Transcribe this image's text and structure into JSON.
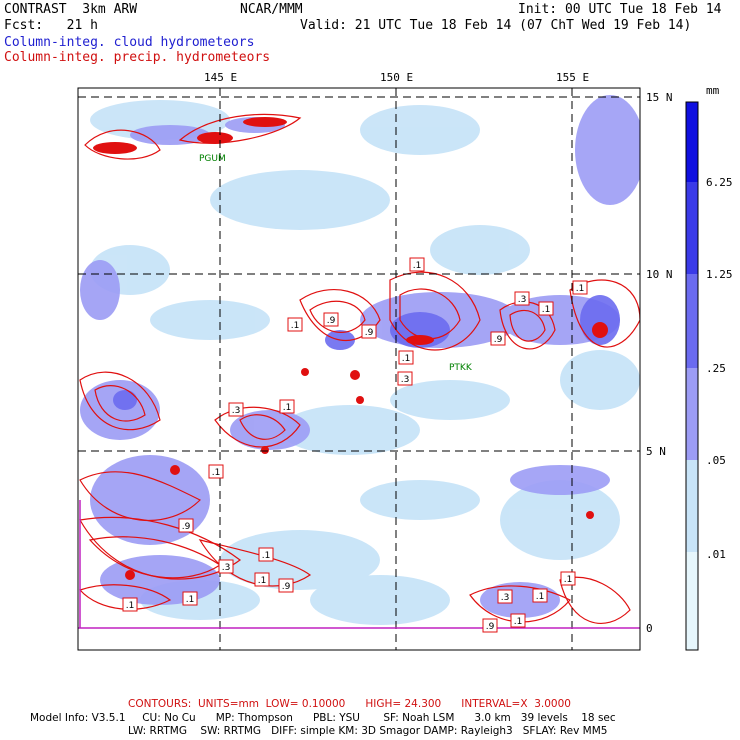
{
  "header": {
    "title": "CONTRAST  3km ARW",
    "org": "NCAR/MMM",
    "init": "Init: 00 UTC Tue 18 Feb 14",
    "fcst": "Fcst:   21 h",
    "valid": "Valid: 21 UTC Tue 18 Feb 14 (07 ChT Wed 19 Feb 14)",
    "line_cloud": "Column-integ. cloud hydrometeors",
    "line_precip": "Column-integ. precip. hydrometeors"
  },
  "axes": {
    "lon_labels": [
      "145 E",
      "150 E",
      "155 E"
    ],
    "lat_labels": [
      "15 N",
      "10 N",
      "5 N",
      "0"
    ]
  },
  "colorbar": {
    "unit": "mm",
    "labels": [
      "6.25",
      "1.25",
      ".25",
      ".05",
      ".01"
    ],
    "colors": [
      "#1010e0",
      "#3a3ae8",
      "#6b6bf0",
      "#9c9cf5",
      "#c8e4f8",
      "#e6f6fc",
      "#ffffff"
    ]
  },
  "stations": {
    "pgum": "PGUM",
    "ptkk": "PTKK"
  },
  "contour_labels": [
    ".1",
    ".9",
    ".9",
    ".1",
    ".3",
    ".1",
    ".1",
    ".9",
    ".3",
    ".1",
    ".1",
    ".9",
    ".3",
    ".1",
    ".1",
    ".9",
    ".3",
    ".1",
    ".1",
    ".9",
    ".1",
    ".1",
    ".3",
    ".1",
    ".1"
  ],
  "footer": {
    "contours": "CONTOURS:  UNITS=mm  LOW= 0.10000      HIGH= 24.300      INTERVAL=X  3.0000",
    "model1": "Model Info: V3.5.1     CU: No Cu      MP: Thompson      PBL: YSU       SF: Noah LSM      3.0 km   39 levels    18 sec",
    "model2": "LW: RRTMG    SW: RRTMG   DIFF: simple KM: 3D Smagor DAMP: Rayleigh3   SFLAY: Rev MM5"
  },
  "colors": {
    "precip_contour": "#e01010",
    "cloud_light": "#c8e4f8",
    "cloud_mid": "#9c9cf5",
    "cloud_dark": "#6b6bf0"
  }
}
